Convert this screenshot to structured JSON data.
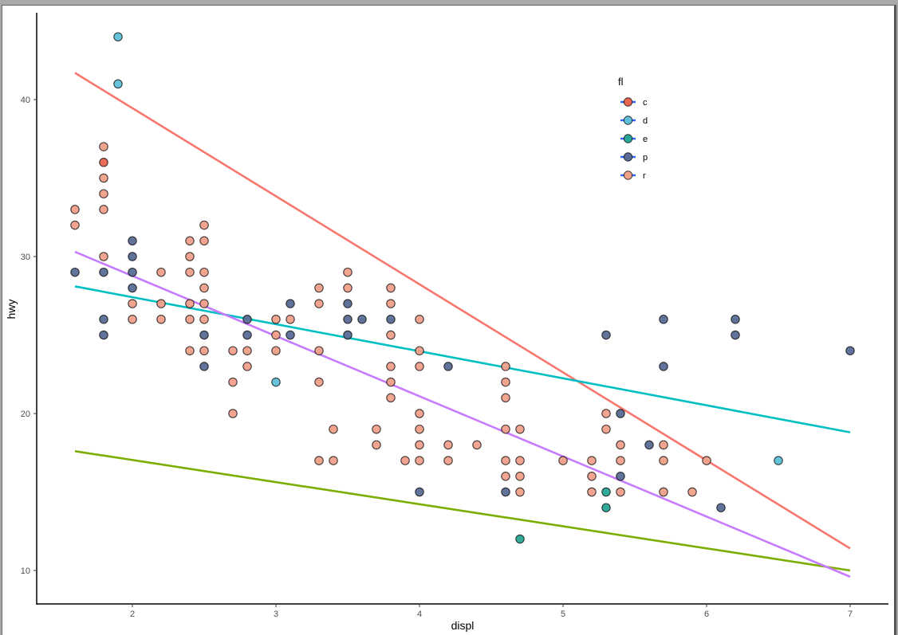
{
  "chart_data": {
    "type": "scatter",
    "title": "",
    "xlabel": "displ",
    "ylabel": "hwy",
    "xlim": [
      1.33,
      7.27
    ],
    "ylim": [
      7.9,
      46.1
    ],
    "x_ticks": [
      2,
      3,
      4,
      5,
      6,
      7
    ],
    "y_ticks": [
      10,
      20,
      30,
      40
    ],
    "grid": false,
    "legend": {
      "title": "fl",
      "position": "inside-top-right",
      "entries": [
        {
          "key": "c",
          "label": "c",
          "color": "#e8654f"
        },
        {
          "key": "d",
          "label": "d",
          "color": "#5ec0d8"
        },
        {
          "key": "e",
          "label": "e",
          "color": "#27a595"
        },
        {
          "key": "p",
          "label": "p",
          "color": "#5a6b96"
        },
        {
          "key": "r",
          "label": "r",
          "color": "#f0a08a"
        }
      ]
    },
    "point_colors": {
      "c": "#e8654f",
      "d": "#5ec0d8",
      "e": "#27a595",
      "p": "#5a6b96",
      "r": "#f0a08a",
      "r_dark": "#ee8f74",
      "p_dark": "#3f4f7e",
      "e_dark": "#0f9a80"
    },
    "series": [
      {
        "name": "c",
        "points": [
          [
            1.8,
            36
          ]
        ]
      },
      {
        "name": "d",
        "points": [
          [
            1.9,
            44
          ],
          [
            1.9,
            41
          ],
          [
            3.0,
            22
          ],
          [
            6.5,
            17
          ]
        ]
      },
      {
        "name": "e",
        "points": [
          [
            4.7,
            12
          ],
          [
            5.3,
            15
          ],
          [
            5.3,
            14
          ]
        ]
      },
      {
        "name": "p",
        "points": [
          [
            1.6,
            29
          ],
          [
            1.8,
            29
          ],
          [
            1.8,
            26
          ],
          [
            1.8,
            25
          ],
          [
            2.0,
            31
          ],
          [
            2.0,
            30
          ],
          [
            2.0,
            29
          ],
          [
            2.0,
            28
          ],
          [
            2.5,
            25
          ],
          [
            2.5,
            23
          ],
          [
            2.8,
            26
          ],
          [
            2.8,
            25
          ],
          [
            3.1,
            27
          ],
          [
            3.1,
            25
          ],
          [
            3.5,
            27
          ],
          [
            3.5,
            26
          ],
          [
            3.5,
            25
          ],
          [
            3.6,
            26
          ],
          [
            3.8,
            26
          ],
          [
            4.0,
            15
          ],
          [
            4.2,
            23
          ],
          [
            4.6,
            15
          ],
          [
            5.3,
            25
          ],
          [
            5.4,
            20
          ],
          [
            5.4,
            16
          ],
          [
            5.6,
            18
          ],
          [
            5.7,
            26
          ],
          [
            5.7,
            23
          ],
          [
            6.1,
            14
          ],
          [
            6.2,
            26
          ],
          [
            6.2,
            25
          ],
          [
            7.0,
            24
          ]
        ]
      },
      {
        "name": "r",
        "points": [
          [
            1.6,
            33
          ],
          [
            1.6,
            32
          ],
          [
            1.8,
            37
          ],
          [
            1.8,
            35
          ],
          [
            1.8,
            34
          ],
          [
            1.8,
            33
          ],
          [
            1.8,
            30
          ],
          [
            2.0,
            27
          ],
          [
            2.0,
            26
          ],
          [
            2.2,
            29
          ],
          [
            2.2,
            27
          ],
          [
            2.2,
            26
          ],
          [
            2.4,
            31
          ],
          [
            2.4,
            30
          ],
          [
            2.4,
            29
          ],
          [
            2.4,
            27
          ],
          [
            2.4,
            26
          ],
          [
            2.4,
            24
          ],
          [
            2.5,
            32
          ],
          [
            2.5,
            31
          ],
          [
            2.5,
            29
          ],
          [
            2.5,
            28
          ],
          [
            2.5,
            27
          ],
          [
            2.5,
            26
          ],
          [
            2.5,
            24
          ],
          [
            2.7,
            24
          ],
          [
            2.7,
            22
          ],
          [
            2.7,
            20
          ],
          [
            2.8,
            24
          ],
          [
            2.8,
            23
          ],
          [
            3.0,
            26
          ],
          [
            3.0,
            25
          ],
          [
            3.0,
            24
          ],
          [
            3.1,
            26
          ],
          [
            3.3,
            28
          ],
          [
            3.3,
            27
          ],
          [
            3.3,
            24
          ],
          [
            3.3,
            22
          ],
          [
            3.3,
            17
          ],
          [
            3.4,
            19
          ],
          [
            3.4,
            17
          ],
          [
            3.5,
            29
          ],
          [
            3.5,
            28
          ],
          [
            3.7,
            19
          ],
          [
            3.7,
            18
          ],
          [
            3.8,
            28
          ],
          [
            3.8,
            27
          ],
          [
            3.8,
            25
          ],
          [
            3.8,
            23
          ],
          [
            3.8,
            22
          ],
          [
            3.8,
            21
          ],
          [
            3.9,
            17
          ],
          [
            4.0,
            26
          ],
          [
            4.0,
            24
          ],
          [
            4.0,
            23
          ],
          [
            4.0,
            20
          ],
          [
            4.0,
            19
          ],
          [
            4.0,
            18
          ],
          [
            4.0,
            17
          ],
          [
            4.2,
            18
          ],
          [
            4.2,
            17
          ],
          [
            4.4,
            18
          ],
          [
            4.6,
            23
          ],
          [
            4.6,
            22
          ],
          [
            4.6,
            21
          ],
          [
            4.6,
            19
          ],
          [
            4.6,
            17
          ],
          [
            4.6,
            16
          ],
          [
            4.7,
            19
          ],
          [
            4.7,
            17
          ],
          [
            4.7,
            16
          ],
          [
            4.7,
            15
          ],
          [
            5.0,
            17
          ],
          [
            5.2,
            17
          ],
          [
            5.2,
            16
          ],
          [
            5.2,
            15
          ],
          [
            5.3,
            20
          ],
          [
            5.3,
            19
          ],
          [
            5.4,
            18
          ],
          [
            5.4,
            17
          ],
          [
            5.4,
            15
          ],
          [
            5.7,
            18
          ],
          [
            5.7,
            17
          ],
          [
            5.7,
            15
          ],
          [
            5.9,
            15
          ],
          [
            6.0,
            17
          ]
        ]
      }
    ],
    "fit_lines": [
      {
        "name": "c",
        "color": "#f8766d",
        "x": [
          1.6,
          7.0
        ],
        "y": [
          41.7,
          11.4
        ]
      },
      {
        "name": "d",
        "color": "#a3a500",
        "x": [
          1.6,
          7.0
        ],
        "y": [
          17.6,
          10.0
        ]
      },
      {
        "name": "e",
        "color": "#7cae00",
        "x": [
          1.6,
          7.0
        ],
        "y": [
          17.6,
          10.0
        ]
      },
      {
        "name": "p",
        "color": "#00bfc4",
        "x": [
          1.6,
          7.0
        ],
        "y": [
          28.1,
          18.8
        ]
      },
      {
        "name": "r",
        "color": "#c77cff",
        "x": [
          1.6,
          7.0
        ],
        "y": [
          30.3,
          9.6
        ]
      }
    ]
  },
  "axes": {
    "x_title": "displ",
    "y_title": "hwy",
    "x_tick_labels": [
      "2",
      "3",
      "4",
      "5",
      "6",
      "7"
    ],
    "y_tick_labels": [
      "10",
      "20",
      "30",
      "40"
    ]
  },
  "legend": {
    "title": "fl",
    "labels": [
      "c",
      "d",
      "e",
      "p",
      "r"
    ]
  }
}
